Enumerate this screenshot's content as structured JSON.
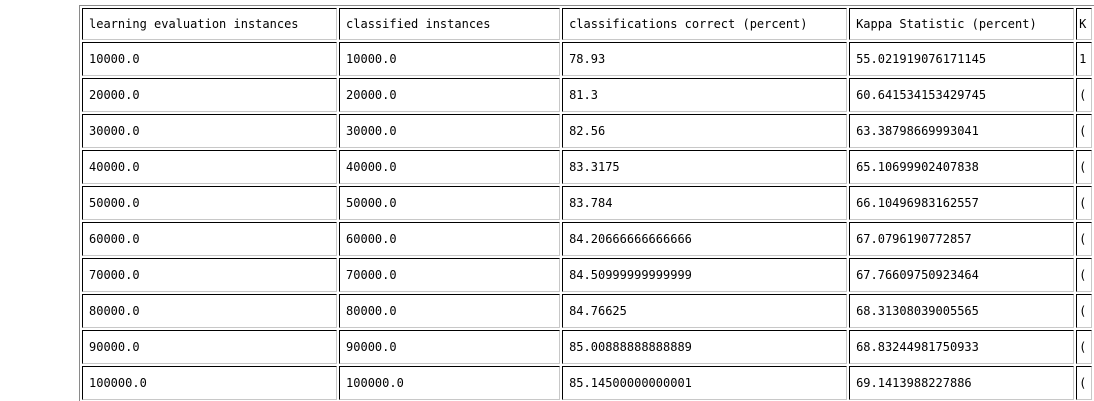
{
  "table": {
    "columns": [
      "learning evaluation instances",
      "classified instances",
      "classifications correct (percent)",
      "Kappa Statistic (percent)",
      "K"
    ],
    "rows": [
      [
        "10000.0",
        "10000.0",
        "78.93",
        "55.021919076171145",
        "1"
      ],
      [
        "20000.0",
        "20000.0",
        "81.3",
        "60.641534153429745",
        "("
      ],
      [
        "30000.0",
        "30000.0",
        "82.56",
        "63.38798669993041",
        "("
      ],
      [
        "40000.0",
        "40000.0",
        "83.3175",
        "65.10699902407838",
        "("
      ],
      [
        "50000.0",
        "50000.0",
        "83.784",
        "66.10496983162557",
        "("
      ],
      [
        "60000.0",
        "60000.0",
        "84.20666666666666",
        "67.0796190772857",
        "("
      ],
      [
        "70000.0",
        "70000.0",
        "84.50999999999999",
        "67.76609750923464",
        "("
      ],
      [
        "80000.0",
        "80000.0",
        "84.76625",
        "68.31308039005565",
        "("
      ],
      [
        "90000.0",
        "90000.0",
        "85.00888888888889",
        "68.83244981750933",
        "("
      ],
      [
        "100000.0",
        "100000.0",
        "85.14500000000001",
        "69.1413988227886",
        "("
      ]
    ]
  }
}
